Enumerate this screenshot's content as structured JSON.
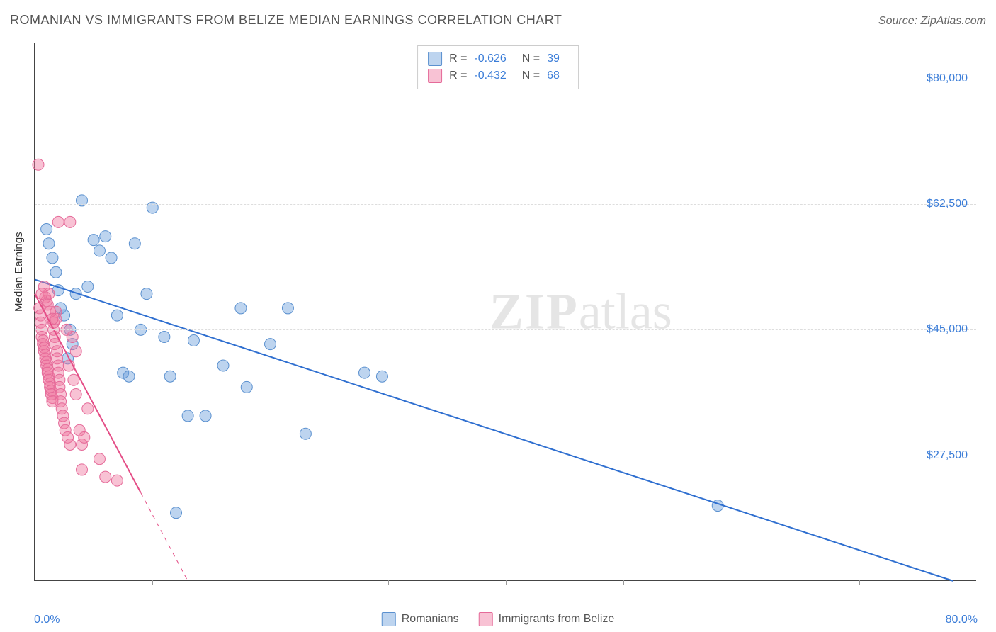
{
  "header": {
    "title": "ROMANIAN VS IMMIGRANTS FROM BELIZE MEDIAN EARNINGS CORRELATION CHART",
    "source_prefix": "Source: ",
    "source_name": "ZipAtlas.com"
  },
  "watermark": {
    "zip": "ZIP",
    "atlas": "atlas"
  },
  "chart": {
    "type": "scatter",
    "x_axis": {
      "min_pct": 0.0,
      "max_pct": 80.0,
      "min_label": "0.0%",
      "max_label": "80.0%",
      "ticks_pct": [
        10,
        20,
        30,
        40,
        50,
        60,
        70
      ]
    },
    "y_axis": {
      "label": "Median Earnings",
      "min": 10000,
      "max": 85000,
      "ticks": [
        {
          "value": 27500,
          "label": "$27,500"
        },
        {
          "value": 45000,
          "label": "$45,000"
        },
        {
          "value": 62500,
          "label": "$62,500"
        },
        {
          "value": 80000,
          "label": "$80,000"
        }
      ],
      "tick_color": "#3b7dd8",
      "grid_color": "#dddddd"
    },
    "background_color": "#ffffff",
    "series": [
      {
        "key": "romanians",
        "label": "Romanians",
        "marker_fill": "rgba(108,160,220,0.45)",
        "marker_stroke": "#5a90cf",
        "marker_radius": 8,
        "trend_color": "#2f6fd0",
        "trend_width": 2,
        "r_label": "R =",
        "r_value": "-0.626",
        "n_label": "N =",
        "n_value": "39",
        "trend": {
          "x1_pct": 0.0,
          "y1": 52000,
          "x2_pct": 78.0,
          "y2": 10000
        },
        "points": [
          {
            "x": 1.0,
            "y": 59000
          },
          {
            "x": 1.2,
            "y": 57000
          },
          {
            "x": 1.5,
            "y": 55000
          },
          {
            "x": 1.8,
            "y": 53000
          },
          {
            "x": 2.0,
            "y": 50500
          },
          {
            "x": 2.2,
            "y": 48000
          },
          {
            "x": 2.5,
            "y": 47000
          },
          {
            "x": 3.0,
            "y": 45000
          },
          {
            "x": 3.5,
            "y": 50000
          },
          {
            "x": 4.0,
            "y": 63000
          },
          {
            "x": 5.0,
            "y": 57500
          },
          {
            "x": 5.5,
            "y": 56000
          },
          {
            "x": 6.0,
            "y": 58000
          },
          {
            "x": 6.5,
            "y": 55000
          },
          {
            "x": 7.0,
            "y": 47000
          },
          {
            "x": 7.5,
            "y": 39000
          },
          {
            "x": 8.0,
            "y": 38500
          },
          {
            "x": 8.5,
            "y": 57000
          },
          {
            "x": 9.0,
            "y": 45000
          },
          {
            "x": 9.5,
            "y": 50000
          },
          {
            "x": 10.0,
            "y": 62000
          },
          {
            "x": 11.0,
            "y": 44000
          },
          {
            "x": 11.5,
            "y": 38500
          },
          {
            "x": 12.0,
            "y": 19500
          },
          {
            "x": 13.0,
            "y": 33000
          },
          {
            "x": 13.5,
            "y": 43500
          },
          {
            "x": 14.5,
            "y": 33000
          },
          {
            "x": 16.0,
            "y": 40000
          },
          {
            "x": 17.5,
            "y": 48000
          },
          {
            "x": 18.0,
            "y": 37000
          },
          {
            "x": 20.0,
            "y": 43000
          },
          {
            "x": 21.5,
            "y": 48000
          },
          {
            "x": 23.0,
            "y": 30500
          },
          {
            "x": 28.0,
            "y": 39000
          },
          {
            "x": 29.5,
            "y": 38500
          },
          {
            "x": 58.0,
            "y": 20500
          },
          {
            "x": 4.5,
            "y": 51000
          },
          {
            "x": 3.2,
            "y": 43000
          },
          {
            "x": 2.8,
            "y": 41000
          }
        ]
      },
      {
        "key": "belize",
        "label": "Immigrants from Belize",
        "marker_fill": "rgba(240,120,160,0.45)",
        "marker_stroke": "#e56a99",
        "marker_radius": 8,
        "trend_color": "#e44d86",
        "trend_width": 2,
        "trend_dash_after_pct": 9.0,
        "r_label": "R =",
        "r_value": "-0.432",
        "n_label": "N =",
        "n_value": "68",
        "trend": {
          "x1_pct": 0.0,
          "y1": 50000,
          "x2_pct": 13.0,
          "y2": 10000
        },
        "points": [
          {
            "x": 0.3,
            "y": 68000
          },
          {
            "x": 0.4,
            "y": 48000
          },
          {
            "x": 0.5,
            "y": 47000
          },
          {
            "x": 0.5,
            "y": 46000
          },
          {
            "x": 0.6,
            "y": 45000
          },
          {
            "x": 0.6,
            "y": 44000
          },
          {
            "x": 0.7,
            "y": 43500
          },
          {
            "x": 0.7,
            "y": 43000
          },
          {
            "x": 0.8,
            "y": 42500
          },
          {
            "x": 0.8,
            "y": 42000
          },
          {
            "x": 0.9,
            "y": 41500
          },
          {
            "x": 0.9,
            "y": 41000
          },
          {
            "x": 1.0,
            "y": 40500
          },
          {
            "x": 1.0,
            "y": 40000
          },
          {
            "x": 1.1,
            "y": 39500
          },
          {
            "x": 1.1,
            "y": 39000
          },
          {
            "x": 1.2,
            "y": 38500
          },
          {
            "x": 1.2,
            "y": 38000
          },
          {
            "x": 1.3,
            "y": 37500
          },
          {
            "x": 1.3,
            "y": 37000
          },
          {
            "x": 1.4,
            "y": 36500
          },
          {
            "x": 1.4,
            "y": 36000
          },
          {
            "x": 1.5,
            "y": 35500
          },
          {
            "x": 1.5,
            "y": 35000
          },
          {
            "x": 1.6,
            "y": 46000
          },
          {
            "x": 1.6,
            "y": 45000
          },
          {
            "x": 1.7,
            "y": 44000
          },
          {
            "x": 1.7,
            "y": 43000
          },
          {
            "x": 1.8,
            "y": 47500
          },
          {
            "x": 1.8,
            "y": 46500
          },
          {
            "x": 1.9,
            "y": 42000
          },
          {
            "x": 1.9,
            "y": 41000
          },
          {
            "x": 2.0,
            "y": 40000
          },
          {
            "x": 2.0,
            "y": 39000
          },
          {
            "x": 2.1,
            "y": 38000
          },
          {
            "x": 2.1,
            "y": 37000
          },
          {
            "x": 2.2,
            "y": 36000
          },
          {
            "x": 2.2,
            "y": 35000
          },
          {
            "x": 2.3,
            "y": 34000
          },
          {
            "x": 2.4,
            "y": 33000
          },
          {
            "x": 2.5,
            "y": 32000
          },
          {
            "x": 2.6,
            "y": 31000
          },
          {
            "x": 2.8,
            "y": 30000
          },
          {
            "x": 3.0,
            "y": 29000
          },
          {
            "x": 3.0,
            "y": 60000
          },
          {
            "x": 3.2,
            "y": 44000
          },
          {
            "x": 3.5,
            "y": 42000
          },
          {
            "x": 3.5,
            "y": 36000
          },
          {
            "x": 3.8,
            "y": 31000
          },
          {
            "x": 4.0,
            "y": 29000
          },
          {
            "x": 4.0,
            "y": 25500
          },
          {
            "x": 4.2,
            "y": 30000
          },
          {
            "x": 4.5,
            "y": 34000
          },
          {
            "x": 5.5,
            "y": 27000
          },
          {
            "x": 6.0,
            "y": 24500
          },
          {
            "x": 7.0,
            "y": 24000
          },
          {
            "x": 2.0,
            "y": 60000
          },
          {
            "x": 1.0,
            "y": 49000
          },
          {
            "x": 1.2,
            "y": 50000
          },
          {
            "x": 0.8,
            "y": 51000
          },
          {
            "x": 0.9,
            "y": 49500
          },
          {
            "x": 1.1,
            "y": 48500
          },
          {
            "x": 1.3,
            "y": 47500
          },
          {
            "x": 1.5,
            "y": 46500
          },
          {
            "x": 0.6,
            "y": 50000
          },
          {
            "x": 2.7,
            "y": 45000
          },
          {
            "x": 2.9,
            "y": 40000
          },
          {
            "x": 3.3,
            "y": 38000
          }
        ]
      }
    ],
    "legend": {
      "swatch_border_blue": "#5a90cf",
      "swatch_fill_blue": "rgba(108,160,220,0.45)",
      "swatch_border_pink": "#e56a99",
      "swatch_fill_pink": "rgba(240,120,160,0.45)"
    }
  }
}
